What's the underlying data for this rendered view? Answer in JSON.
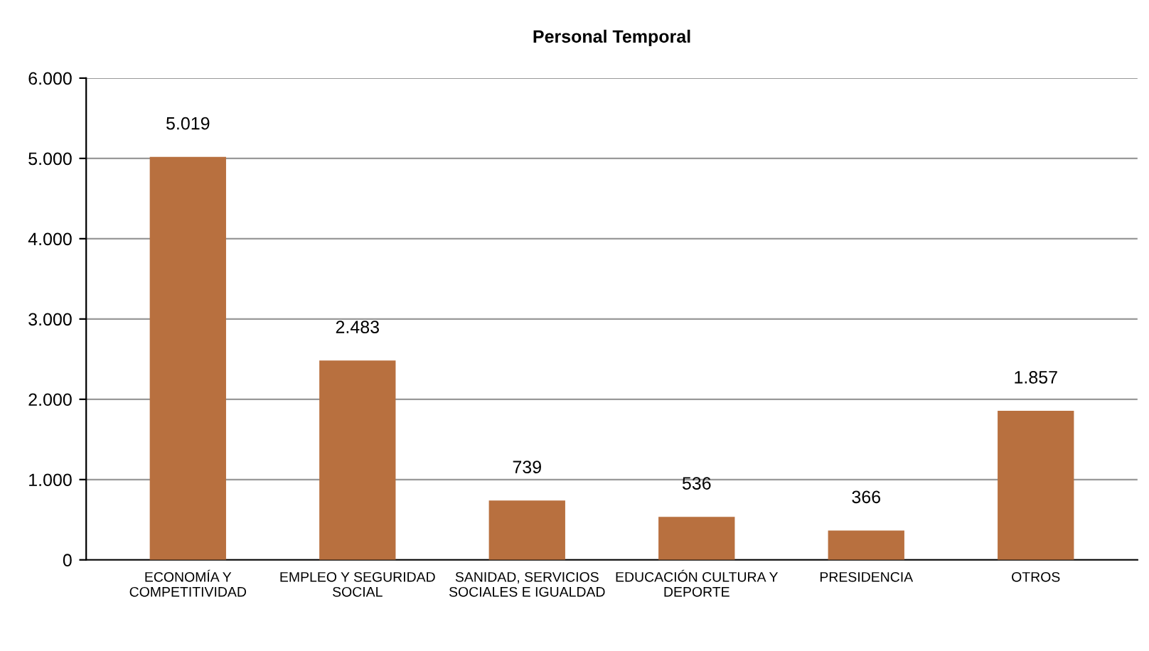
{
  "chart_data": {
    "type": "bar",
    "title": "Personal Temporal",
    "categories": [
      "ECONOMÍA Y COMPETITIVIDAD",
      "EMPLEO Y SEGURIDAD SOCIAL",
      "SANIDAD, SERVICIOS SOCIALES E IGUALDAD",
      "EDUCACIÓN CULTURA Y DEPORTE",
      "PRESIDENCIA",
      "OTROS"
    ],
    "values": [
      5019,
      2483,
      739,
      536,
      366,
      1857
    ],
    "value_labels": [
      "5.019",
      "2.483",
      "739",
      "536",
      "366",
      "1.857"
    ],
    "color": "#b8703f",
    "ylim": [
      0,
      6000
    ],
    "yticks": [
      {
        "value": 0,
        "label": "0"
      },
      {
        "value": 1000,
        "label": "1.000"
      },
      {
        "value": 2000,
        "label": "2.000"
      },
      {
        "value": 3000,
        "label": "3.000"
      },
      {
        "value": 4000,
        "label": "4.000"
      },
      {
        "value": 5000,
        "label": "5.000"
      },
      {
        "value": 6000,
        "label": "6.000"
      }
    ],
    "grid": "y",
    "legend": false
  }
}
